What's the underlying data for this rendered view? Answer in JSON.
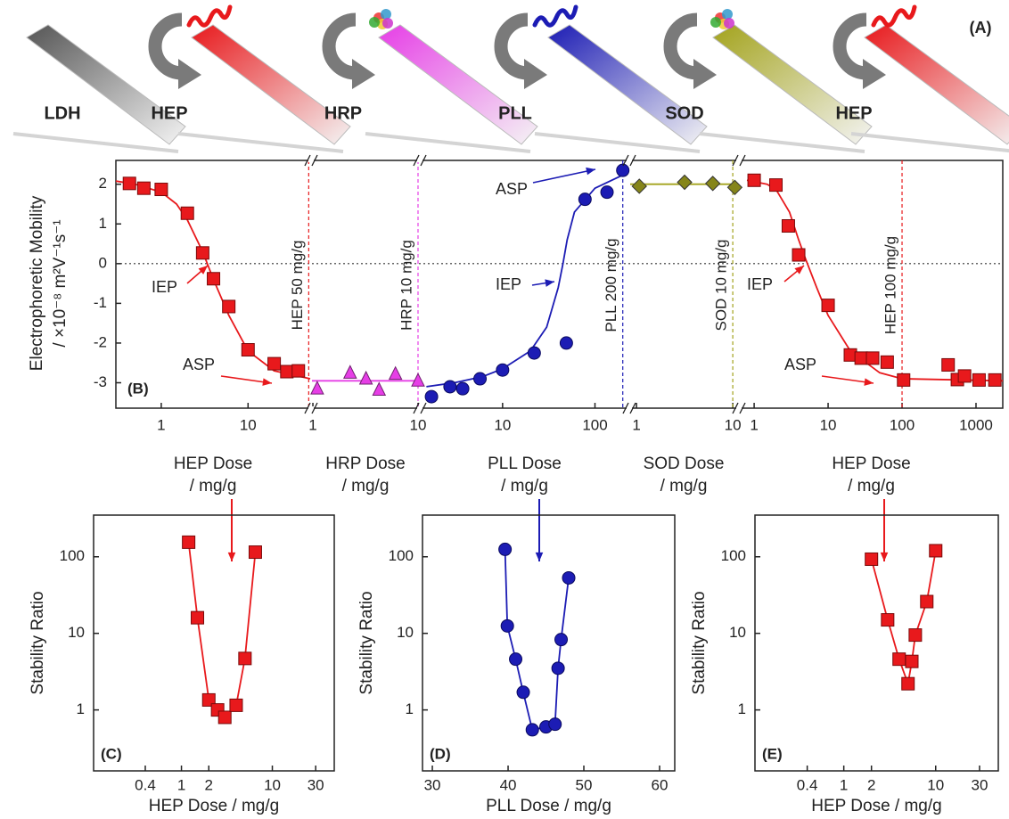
{
  "panel_a": {
    "label": "(A)",
    "steps": [
      {
        "name": "LDH",
        "color": "#555555"
      },
      {
        "name": "HEP",
        "color": "#e8191c"
      },
      {
        "name": "HRP",
        "color": "#e63ee6"
      },
      {
        "name": "PLL",
        "color": "#1c1cb4"
      },
      {
        "name": "SOD",
        "color": "#a3a31c"
      },
      {
        "name": "HEP",
        "color": "#e8191c"
      }
    ]
  },
  "chart_data": [
    {
      "type": "segmented-scatter",
      "panel": "(B)",
      "y_label": [
        "Electrophoretic Mobility",
        "/ ×10⁻⁸ m²V⁻¹s⁻¹"
      ],
      "ylim": [
        -3.64,
        2.6
      ],
      "yticks": [
        -3,
        -2,
        -1,
        0,
        1,
        2
      ],
      "zero_line": true,
      "log_x": true,
      "segments": [
        {
          "name": "HEP",
          "color": "#e8191c",
          "marker": "square",
          "x_label": [
            "HEP Dose",
            "/ mg/g"
          ],
          "xlim": [
            0.3,
            52
          ],
          "xticks": [
            1,
            10
          ],
          "x": [
            0.43,
            0.63,
            1,
            2,
            3,
            4,
            6,
            10,
            20,
            28,
            38
          ],
          "values": [
            2.02,
            1.9,
            1.87,
            1.27,
            0.27,
            -0.38,
            -1.08,
            -2.17,
            -2.52,
            -2.72,
            -2.7
          ],
          "fit_x": [
            0.3,
            0.5,
            1,
            1.5,
            2,
            3,
            4,
            6,
            10,
            20,
            52
          ],
          "fit_values": [
            2.08,
            2.0,
            1.8,
            1.5,
            1.1,
            0.3,
            -0.4,
            -1.3,
            -2.2,
            -2.7,
            -2.9
          ],
          "dose_line": {
            "value": 50,
            "label": "HEP 50 mg/g"
          },
          "annotations": [
            "IEP",
            "ASP"
          ]
        },
        {
          "name": "HRP",
          "color": "#e63ee6",
          "marker": "triangle",
          "x_label": [
            "HRP Dose",
            "/ mg/g"
          ],
          "xlim": [
            0.98,
            10.2
          ],
          "xticks": [
            1,
            10
          ],
          "x": [
            1.1,
            2.26,
            3.2,
            4.26,
            6.1,
            10
          ],
          "values": [
            -3.15,
            -2.75,
            -2.9,
            -3.18,
            -2.78,
            -2.95
          ],
          "fit_x": [
            0.98,
            10.2
          ],
          "fit_values": [
            -2.95,
            -2.95
          ],
          "dose_line": {
            "value": 10,
            "label": "HRP 10 mg/g"
          },
          "annotations": []
        },
        {
          "name": "PLL",
          "color": "#1c1cb4",
          "marker": "circle",
          "x_label": [
            "PLL Dose",
            "/ mg/g"
          ],
          "xlim": [
            1.3,
            230
          ],
          "xticks": [
            10,
            100
          ],
          "x": [
            1.7,
            2.7,
            3.7,
            5.7,
            10,
            22,
            49,
            78,
            135,
            200
          ],
          "values": [
            -3.35,
            -3.1,
            -3.15,
            -2.9,
            -2.68,
            -2.25,
            -2.0,
            1.62,
            1.8,
            2.35
          ],
          "fit_x": [
            1.5,
            3,
            6,
            10,
            20,
            30,
            40,
            45,
            50,
            60,
            100,
            230
          ],
          "fit_values": [
            -3.1,
            -3.0,
            -2.85,
            -2.65,
            -2.2,
            -1.6,
            -0.6,
            0,
            0.6,
            1.3,
            1.9,
            2.3
          ],
          "dose_line": {
            "value": 200,
            "label": "PLL 200 mg/g"
          },
          "annotations": [
            "ASP",
            "IEP"
          ]
        },
        {
          "name": "SOD",
          "color": "#a3a31c",
          "marker": "diamond",
          "x_label": [
            "SOD Dose",
            "/ mg/g"
          ],
          "xlim": [
            0.86,
            11.1
          ],
          "xticks": [
            1,
            10
          ],
          "x": [
            1.07,
            3.16,
            6.2,
            10.5
          ],
          "values": [
            1.95,
            2.05,
            2.02,
            1.92
          ],
          "fit_x": [
            0.86,
            11.1
          ],
          "fit_values": [
            2.0,
            2.0
          ],
          "dose_line": {
            "value": 10,
            "label": "SOD 10 mg/g"
          },
          "annotations": []
        },
        {
          "name": "HEP",
          "color": "#e8191c",
          "marker": "square",
          "x_label": [
            "HEP Dose",
            "/ mg/g"
          ],
          "xlim": [
            0.64,
            2300
          ],
          "xticks": [
            1,
            10,
            100,
            1000
          ],
          "x": [
            1,
            1.97,
            2.9,
            4,
            10,
            20,
            28,
            40,
            63,
            105,
            420,
            560,
            700,
            1100,
            1800
          ],
          "values": [
            2.1,
            1.98,
            0.95,
            0.22,
            -1.05,
            -2.3,
            -2.38,
            -2.38,
            -2.48,
            -2.93,
            -2.55,
            -2.92,
            -2.83,
            -2.93,
            -2.93
          ],
          "fit_x": [
            0.8,
            1.5,
            2,
            3,
            4,
            5,
            7,
            10,
            20,
            50,
            100,
            2300
          ],
          "fit_values": [
            2.1,
            2.0,
            1.85,
            1.3,
            0.6,
            0.1,
            -0.6,
            -1.3,
            -2.2,
            -2.75,
            -2.9,
            -2.95
          ],
          "dose_line": {
            "value": 100,
            "label": "HEP 100 mg/g"
          },
          "annotations": [
            "IEP",
            "ASP"
          ]
        }
      ]
    },
    {
      "type": "line-scatter",
      "panel": "(C)",
      "x_label": "HEP Dose / mg/g",
      "y_label": "Stability Ratio",
      "log_x": true,
      "log_y": true,
      "xlim": [
        0.108,
        48
      ],
      "xticks": [
        0.4,
        1,
        2,
        10,
        30
      ],
      "ylim": [
        0.16,
        350
      ],
      "yticks": [
        1,
        10,
        100
      ],
      "color": "#e8191c",
      "marker": "square",
      "x": [
        1.2,
        1.5,
        2,
        2.5,
        3,
        4,
        5,
        6.5
      ],
      "values": [
        155,
        16,
        1.35,
        1.0,
        0.8,
        1.15,
        4.7,
        115
      ]
    },
    {
      "type": "line-scatter",
      "panel": "(D)",
      "x_label": "PLL Dose / mg/g",
      "y_label": "Stability Ratio",
      "log_x": false,
      "log_y": true,
      "xlim": [
        28.7,
        62
      ],
      "xticks": [
        30,
        40,
        50,
        60
      ],
      "ylim": [
        0.16,
        350
      ],
      "yticks": [
        1,
        10,
        100
      ],
      "color": "#1c1cb4",
      "marker": "circle",
      "x": [
        39.6,
        39.9,
        41.0,
        42.0,
        43.2,
        45.0,
        46.2,
        46.6,
        47.0,
        48.0
      ],
      "values": [
        125,
        12.5,
        4.6,
        1.7,
        0.55,
        0.6,
        0.65,
        3.5,
        8.3,
        53
      ]
    },
    {
      "type": "line-scatter",
      "panel": "(E)",
      "x_label": "HEP Dose / mg/g",
      "y_label": "Stability Ratio",
      "log_x": true,
      "log_y": true,
      "xlim": [
        0.108,
        48
      ],
      "xticks": [
        0.4,
        1,
        2,
        10,
        30
      ],
      "ylim": [
        0.16,
        350
      ],
      "yticks": [
        1,
        10,
        100
      ],
      "color": "#e8191c",
      "marker": "square",
      "x": [
        2,
        3,
        4,
        5,
        5.5,
        6,
        8,
        10
      ],
      "values": [
        93,
        15,
        4.6,
        2.2,
        4.3,
        9.5,
        26,
        120
      ]
    }
  ]
}
